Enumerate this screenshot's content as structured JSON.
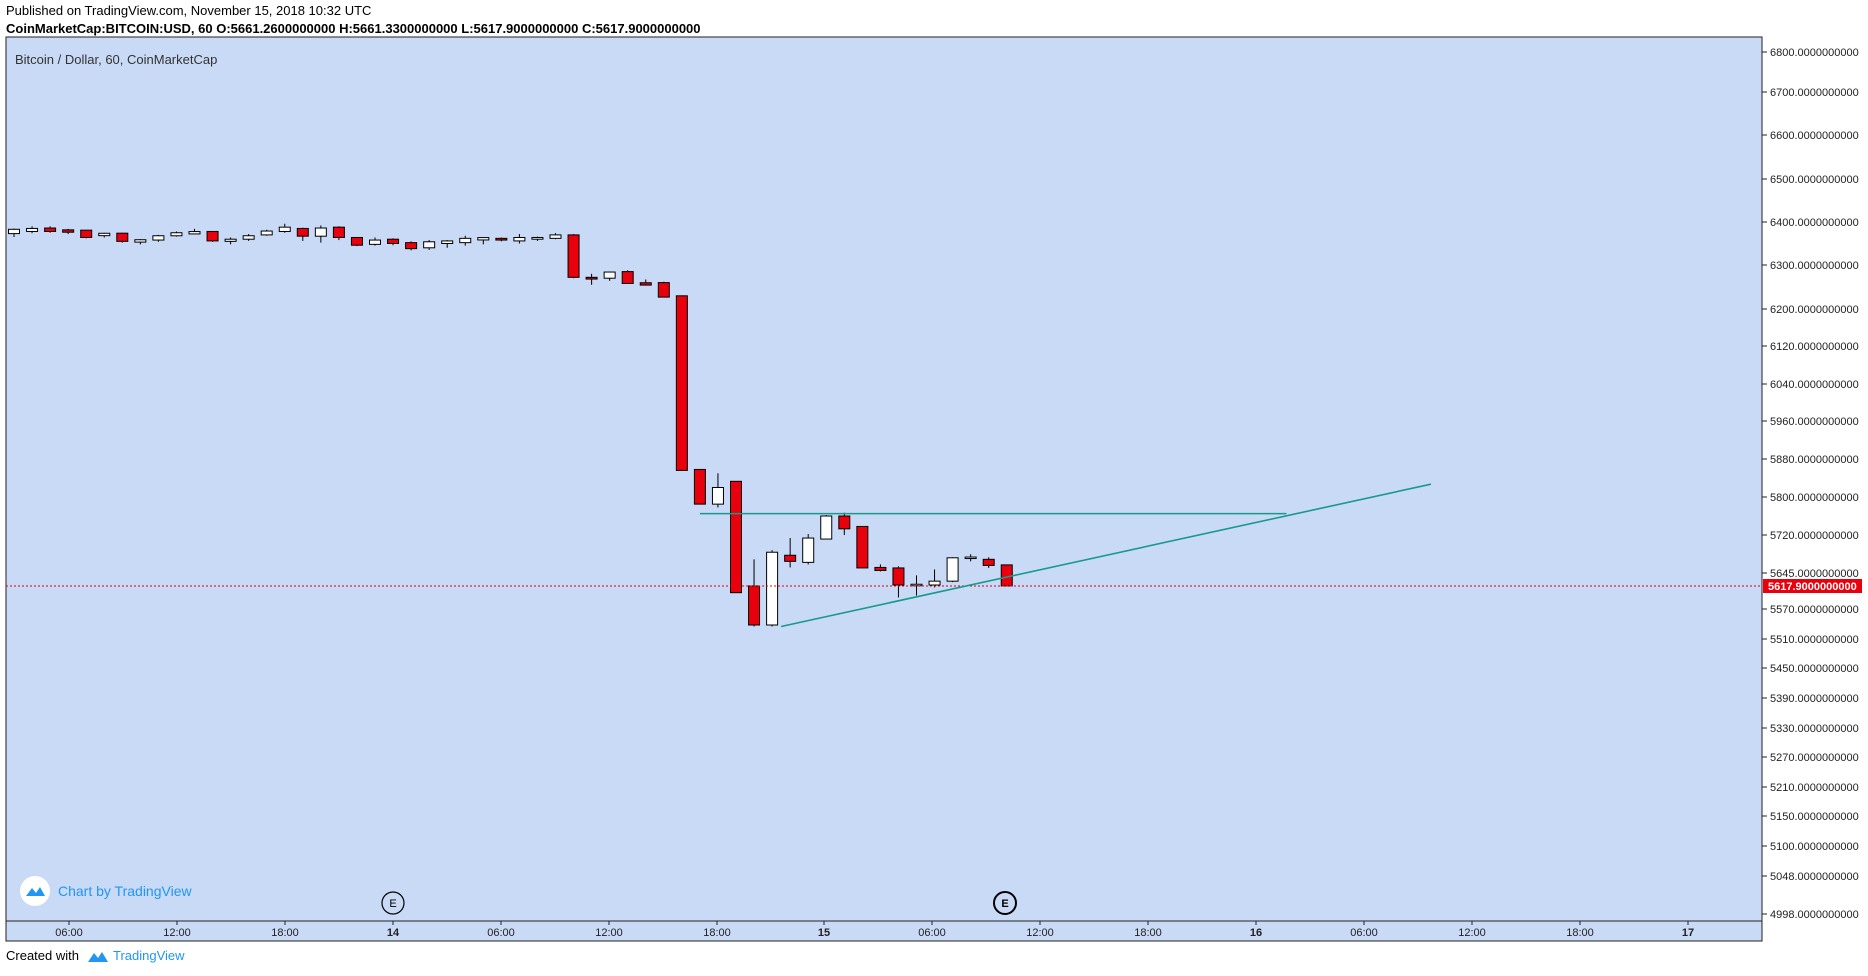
{
  "header": {
    "published": "Published on TradingView.com, November 15, 2018 10:32 UTC",
    "symbol": "CoinMarketCap:BITCOIN:USD, 60",
    "ohlc": "O:5661.2600000000 H:5661.3300000000 L:5617.9000000000 C:5617.9000000000"
  },
  "chart_title": "Bitcoin / Dollar, 60, CoinMarketCap",
  "watermark": "Chart by TradingView",
  "footer": {
    "created": "Created with",
    "brand": "TradingView"
  },
  "colors": {
    "background": "#c9daf6",
    "up": "#ffffff",
    "down": "#e8000c",
    "trend": "#17998c",
    "last": "#e8000c"
  },
  "chart_data": {
    "type": "candlestick",
    "title": "Bitcoin / Dollar, 60, CoinMarketCap",
    "y_ticks": [
      "6800.0000000000",
      "6700.0000000000",
      "6600.0000000000",
      "6500.0000000000",
      "6400.0000000000",
      "6300.0000000000",
      "6200.0000000000",
      "6120.0000000000",
      "6040.0000000000",
      "5960.0000000000",
      "5880.0000000000",
      "5800.0000000000",
      "5720.0000000000",
      "5645.0000000000",
      "5570.0000000000",
      "5510.0000000000",
      "5450.0000000000",
      "5390.0000000000",
      "5330.0000000000",
      "5270.0000000000",
      "5210.0000000000",
      "5150.0000000000",
      "5100.0000000000",
      "5048.0000000000",
      "4998.0000000000"
    ],
    "x_ticks": [
      "06:00",
      "12:00",
      "18:00",
      "14",
      "06:00",
      "12:00",
      "18:00",
      "15",
      "06:00",
      "12:00",
      "18:00",
      "16",
      "06:00",
      "12:00",
      "18:00",
      "17"
    ],
    "last_price": "5617.9000000000",
    "events": [
      "E",
      "E"
    ],
    "candles": [
      [
        6373,
        6385,
        6365,
        6383
      ],
      [
        6378,
        6390,
        6374,
        6385
      ],
      [
        6386,
        6390,
        6375,
        6378
      ],
      [
        6380,
        6384,
        6372,
        6378
      ],
      [
        6381,
        6381,
        6362,
        6364
      ],
      [
        6370,
        6375,
        6364,
        6372
      ],
      [
        6374,
        6375,
        6352,
        6355
      ],
      [
        6355,
        6360,
        6348,
        6357
      ],
      [
        6358,
        6370,
        6354,
        6368
      ],
      [
        6368,
        6378,
        6366,
        6375
      ],
      [
        6374,
        6384,
        6372,
        6376
      ],
      [
        6378,
        6378,
        6354,
        6356
      ],
      [
        6355,
        6364,
        6348,
        6360
      ],
      [
        6360,
        6372,
        6356,
        6368
      ],
      [
        6370,
        6382,
        6368,
        6379
      ],
      [
        6378,
        6396,
        6375,
        6388
      ],
      [
        6385,
        6387,
        6356,
        6367
      ],
      [
        6367,
        6392,
        6352,
        6386
      ],
      [
        6388,
        6390,
        6358,
        6364
      ],
      [
        6364,
        6364,
        6344,
        6346
      ],
      [
        6348,
        6364,
        6345,
        6358
      ],
      [
        6360,
        6362,
        6346,
        6350
      ],
      [
        6352,
        6355,
        6334,
        6338
      ],
      [
        6340,
        6358,
        6335,
        6354
      ],
      [
        6350,
        6358,
        6340,
        6356
      ],
      [
        6352,
        6368,
        6345,
        6362
      ],
      [
        6360,
        6364,
        6348,
        6362
      ],
      [
        6362,
        6364,
        6355,
        6358
      ],
      [
        6356,
        6372,
        6350,
        6364
      ],
      [
        6360,
        6366,
        6356,
        6364
      ],
      [
        6362,
        6374,
        6360,
        6370
      ],
      [
        6370,
        6372,
        6270,
        6272
      ],
      [
        6272,
        6280,
        6255,
        6268
      ],
      [
        6270,
        6285,
        6264,
        6284
      ],
      [
        6285,
        6288,
        6258,
        6258
      ],
      [
        6258,
        6267,
        6254,
        6256
      ],
      [
        6260,
        6262,
        6227,
        6227
      ],
      [
        6230,
        6230,
        5856,
        5856
      ],
      [
        5858,
        5858,
        5785,
        5785
      ],
      [
        5785,
        5850,
        5778,
        5820
      ],
      [
        5833,
        5833,
        5604,
        5604
      ],
      [
        5618,
        5672,
        5535,
        5538
      ],
      [
        5538,
        5690,
        5535,
        5686
      ],
      [
        5680,
        5714,
        5656,
        5668
      ],
      [
        5666,
        5722,
        5662,
        5714
      ],
      [
        5712,
        5762,
        5712,
        5760
      ],
      [
        5760,
        5767,
        5720,
        5733
      ],
      [
        5738,
        5738,
        5655,
        5655
      ],
      [
        5656,
        5662,
        5648,
        5650
      ],
      [
        5655,
        5658,
        5594,
        5620
      ],
      [
        5620,
        5640,
        5598,
        5620
      ],
      [
        5620,
        5652,
        5615,
        5628
      ],
      [
        5628,
        5676,
        5626,
        5675
      ],
      [
        5675,
        5682,
        5668,
        5675
      ],
      [
        5672,
        5676,
        5655,
        5660
      ],
      [
        5661,
        5661,
        5618,
        5618
      ]
    ],
    "trendlines": [
      {
        "x1": 38.0,
        "y1": 5765,
        "x2": 70.5,
        "y2": 5765
      },
      {
        "x1": 42.5,
        "y1": 5535,
        "x2": 78.5,
        "y2": 5827
      }
    ]
  }
}
